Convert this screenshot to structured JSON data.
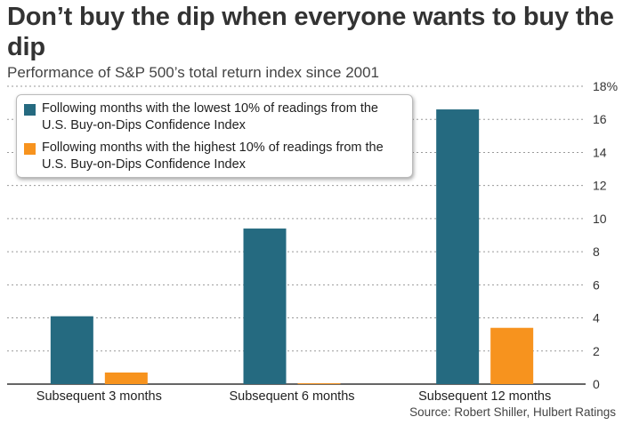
{
  "title": "Don’t buy the dip when everyone wants to buy the dip",
  "subtitle": "Performance of S&P 500’s total return index since 2001",
  "source": "Source: Robert Shiller, Hulbert Ratings",
  "chart_data": {
    "type": "bar",
    "categories": [
      "Subsequent 3 months",
      "Subsequent 6 months",
      "Subsequent 12 months"
    ],
    "series": [
      {
        "name": "Following months with the lowest 10% of readings from the U.S. Buy-on-Dips Confidence Index",
        "color": "#256a80",
        "values": [
          4.1,
          9.4,
          16.6
        ]
      },
      {
        "name": "Following months with the highest 10% of readings from the U.S. Buy-on-Dips Confidence Index",
        "color": "#f7931e",
        "values": [
          0.7,
          0.05,
          3.4
        ]
      }
    ],
    "ylim": [
      0,
      18
    ],
    "yticks": [
      0,
      2,
      4,
      6,
      8,
      10,
      12,
      14,
      16,
      18
    ],
    "ytick_labels": [
      "0",
      "2",
      "4",
      "6",
      "8",
      "10",
      "12",
      "14",
      "16",
      "18%"
    ],
    "grid": true,
    "legend_position": "top-left",
    "xlabel": "",
    "ylabel": ""
  }
}
